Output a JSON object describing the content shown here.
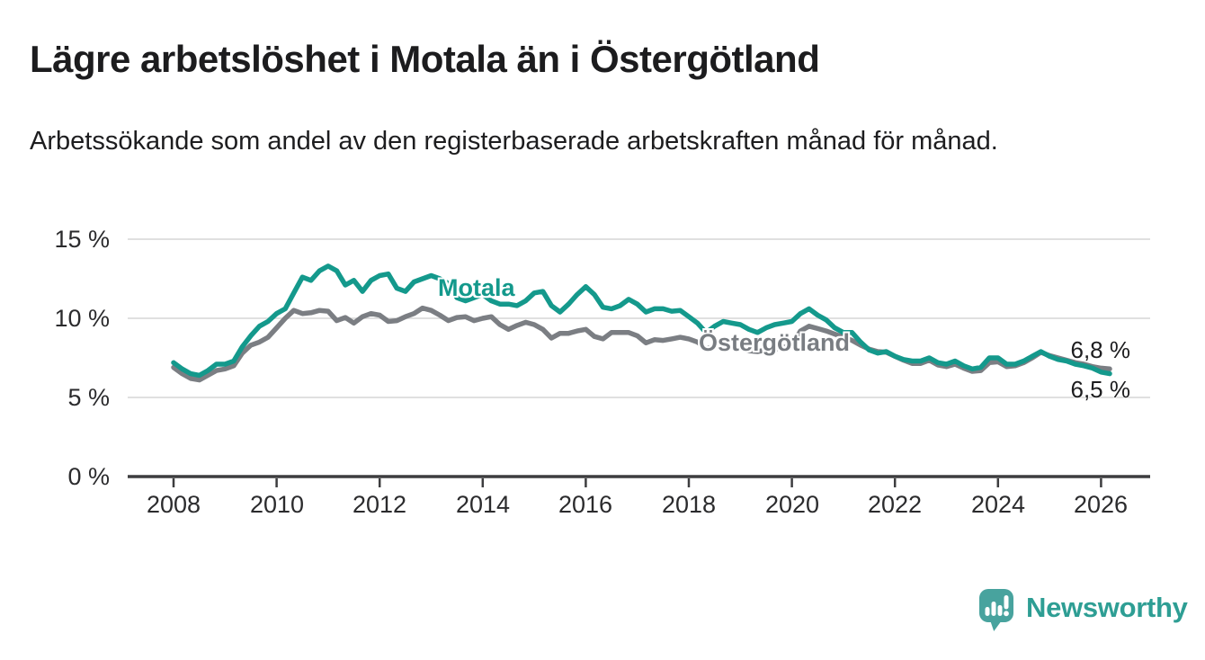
{
  "header": {
    "title": "Lägre arbetslöshet i Motala än i Östergötland",
    "subtitle": "Arbetssökande som andel av den registerbaserade arbetskraften månad för månad."
  },
  "chart_data": {
    "type": "line",
    "title": "Arbetssökande som andel av den registerbaserade arbetskraften månad för månad",
    "grid": "horizontal",
    "x_axis": {
      "tick_labels": [
        "2008",
        "2010",
        "2012",
        "2014",
        "2016",
        "2018",
        "2020",
        "2022",
        "2024",
        "2026"
      ],
      "tick_values": [
        2008,
        2010,
        2012,
        2014,
        2016,
        2018,
        2020,
        2022,
        2024,
        2026
      ],
      "range": [
        2007.1,
        2027.0
      ]
    },
    "y_axis": {
      "unit": "%",
      "tick_labels": [
        "0 %",
        "5 %",
        "10 %",
        "15 %"
      ],
      "tick_values": [
        0,
        5,
        10,
        15
      ],
      "range": [
        0,
        15
      ]
    },
    "sampling": {
      "start_year": 2008.0,
      "step_months": 2
    },
    "series": [
      {
        "name": "Motala",
        "color": "#14998c",
        "end_label": "6,5 %",
        "end_value": 6.5,
        "values": [
          7.2,
          6.8,
          6.5,
          6.4,
          6.7,
          7.1,
          7.1,
          7.3,
          8.2,
          8.9,
          9.5,
          9.8,
          10.3,
          10.6,
          11.6,
          12.6,
          12.4,
          13.0,
          13.3,
          13.0,
          12.1,
          12.4,
          11.7,
          12.4,
          12.7,
          12.8,
          11.9,
          11.7,
          12.3,
          12.5,
          12.7,
          12.5,
          12.2,
          11.3,
          11.1,
          11.3,
          11.5,
          11.1,
          10.9,
          10.9,
          10.8,
          11.1,
          11.6,
          11.7,
          10.8,
          10.4,
          10.9,
          11.5,
          12.0,
          11.5,
          10.7,
          10.6,
          10.8,
          11.2,
          10.9,
          10.4,
          10.6,
          10.6,
          10.45,
          10.5,
          10.1,
          9.7,
          9.1,
          9.5,
          9.8,
          9.7,
          9.6,
          9.3,
          9.1,
          9.4,
          9.6,
          9.7,
          9.8,
          10.3,
          10.6,
          10.2,
          9.9,
          9.4,
          9.1,
          9.1,
          8.5,
          8.0,
          7.8,
          7.9,
          7.6,
          7.4,
          7.3,
          7.3,
          7.5,
          7.2,
          7.1,
          7.3,
          7.0,
          6.8,
          6.9,
          7.5,
          7.5,
          7.1,
          7.1,
          7.3,
          7.6,
          7.9,
          7.6,
          7.4,
          7.3,
          7.1,
          7.0,
          6.85,
          6.6,
          6.5
        ]
      },
      {
        "name": "Östergötland",
        "color": "#7b7e83",
        "end_label": "6,8 %",
        "end_value": 6.8,
        "values": [
          6.9,
          6.5,
          6.2,
          6.1,
          6.4,
          6.7,
          6.8,
          7.0,
          7.8,
          8.3,
          8.5,
          8.8,
          9.4,
          10.0,
          10.5,
          10.3,
          10.35,
          10.5,
          10.45,
          9.85,
          10.05,
          9.7,
          10.1,
          10.3,
          10.2,
          9.8,
          9.85,
          10.1,
          10.3,
          10.65,
          10.5,
          10.2,
          9.85,
          10.05,
          10.1,
          9.85,
          10.0,
          10.1,
          9.6,
          9.3,
          9.55,
          9.75,
          9.6,
          9.3,
          8.75,
          9.05,
          9.05,
          9.2,
          9.3,
          8.85,
          8.7,
          9.1,
          9.1,
          9.1,
          8.9,
          8.45,
          8.65,
          8.6,
          8.7,
          8.8,
          8.7,
          8.5,
          8.1,
          8.2,
          8.3,
          8.2,
          8.1,
          7.95,
          7.9,
          8.0,
          8.05,
          8.15,
          8.3,
          9.2,
          9.5,
          9.35,
          9.2,
          9.0,
          8.8,
          8.6,
          8.3,
          8.05,
          7.9,
          7.85,
          7.6,
          7.35,
          7.15,
          7.15,
          7.35,
          7.05,
          6.95,
          7.1,
          6.85,
          6.65,
          6.7,
          7.2,
          7.25,
          6.95,
          7.0,
          7.2,
          7.5,
          7.85,
          7.65,
          7.5,
          7.35,
          7.2,
          7.1,
          6.95,
          6.85,
          6.8
        ]
      }
    ],
    "style": {
      "grid_color": "#e0e0e0",
      "axis_color": "#3d3d3f",
      "line_width": 5.5
    }
  },
  "branding": {
    "wordmark": "Newsworthy",
    "icon": "bar-chart-speech-bubble",
    "icon_color": "#48a39e",
    "text_color": "#2e9e94"
  }
}
